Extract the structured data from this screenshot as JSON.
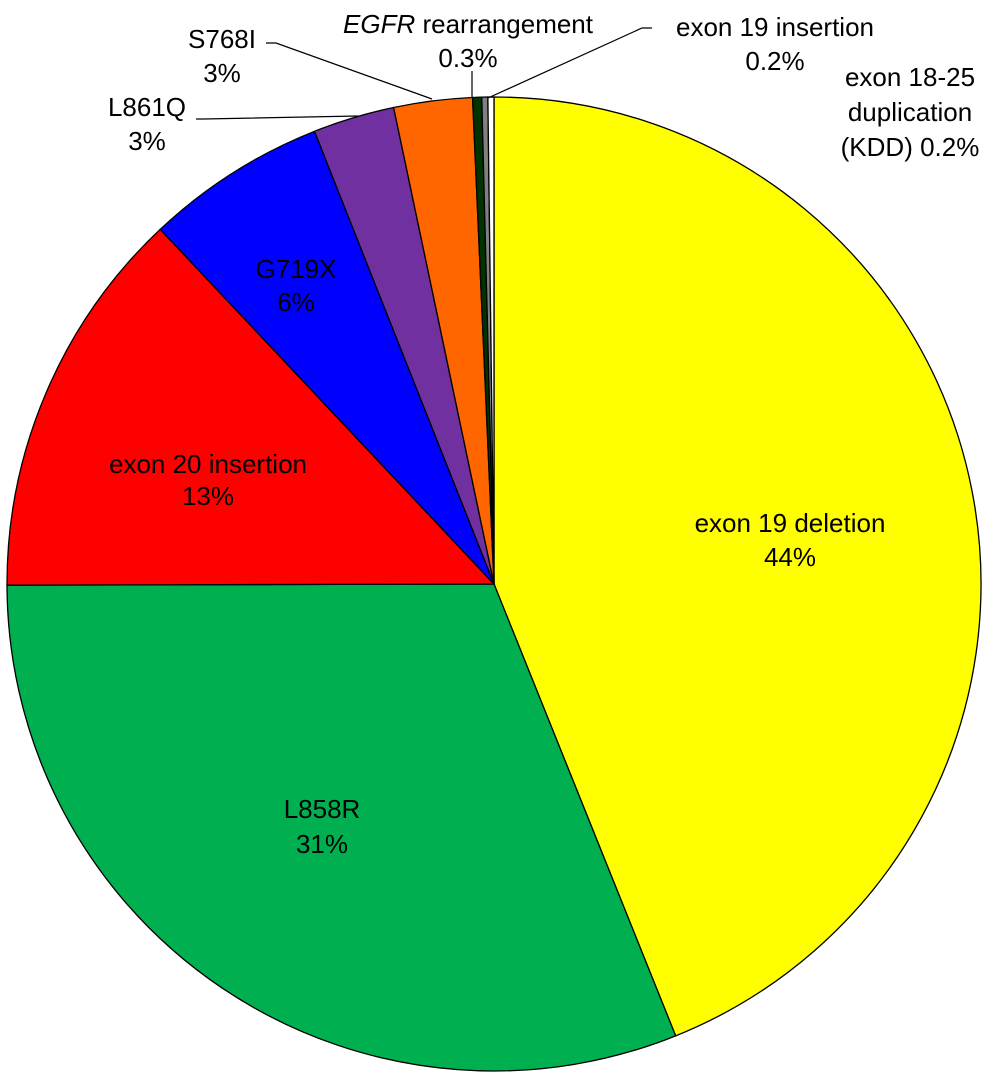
{
  "chart_data": {
    "type": "pie",
    "title": "",
    "slices": [
      {
        "name": "exon 19 deletion",
        "value_label": "44%",
        "value": 43.85,
        "color": "#ffff00"
      },
      {
        "name": "L858R",
        "value_label": "31%",
        "value": 31.0,
        "color": "#00b050"
      },
      {
        "name": "exon 20 insertion",
        "value_label": "13%",
        "value": 13.0,
        "color": "#ff0000"
      },
      {
        "name": "G719X",
        "value_label": "6%",
        "value": 6.0,
        "color": "#0000ff"
      },
      {
        "name": "L861Q",
        "value_label": "3%",
        "value": 2.7,
        "color": "#7030a0"
      },
      {
        "name": "S768I",
        "value_label": "3%",
        "value": 2.6,
        "color": "#ff6600"
      },
      {
        "name": "EGFR rearrangement",
        "name_italic_part": "EGFR",
        "name_rest": " rearrangement",
        "value_label": "0.3%",
        "value": 0.3,
        "color": "#003300"
      },
      {
        "name": "exon 19 insertion",
        "value_label": "0.2%",
        "value": 0.2,
        "color": "#808080"
      },
      {
        "name": "exon 18-25 duplication (KDD)",
        "name_lines": [
          "exon 18-25",
          "duplication"
        ],
        "last_line": "(KDD) 0.2%",
        "value_label": "0.2%",
        "value": 0.2,
        "color": "#ffffff"
      }
    ]
  }
}
